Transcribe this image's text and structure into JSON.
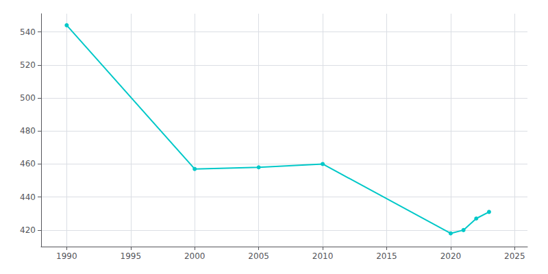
{
  "chart_data": {
    "type": "line",
    "x": [
      1990,
      2000,
      2005,
      2010,
      2020,
      2021,
      2022,
      2023
    ],
    "values": [
      544,
      457,
      458,
      460,
      418,
      420,
      427,
      431
    ],
    "color": "#00c8c8",
    "marker": "circle",
    "xlim": [
      1988,
      2026
    ],
    "ylim": [
      410,
      551
    ],
    "xticks": [
      1990,
      1995,
      2000,
      2005,
      2010,
      2015,
      2020,
      2025
    ],
    "yticks": [
      420,
      440,
      460,
      480,
      500,
      520,
      540
    ],
    "grid": true
  }
}
